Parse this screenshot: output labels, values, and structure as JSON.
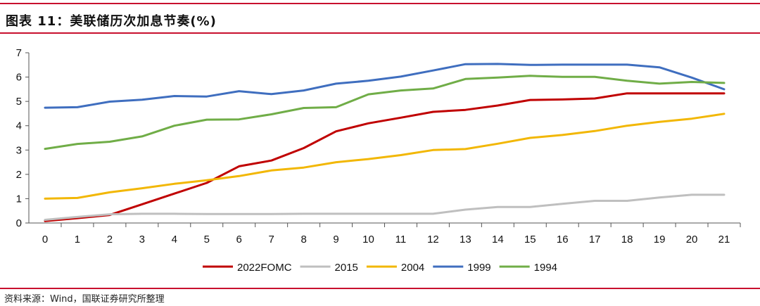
{
  "header": {
    "title": "图表 11：美联储历次加息节奏(%)",
    "source": "资料来源：Wind，国联证券研究所整理"
  },
  "chart_data": {
    "type": "line",
    "title": "图表 11：美联储历次加息节奏(%)",
    "xlabel": "",
    "ylabel": "",
    "x": [
      0,
      1,
      2,
      3,
      4,
      5,
      6,
      7,
      8,
      9,
      10,
      11,
      12,
      13,
      14,
      15,
      16,
      17,
      18,
      19,
      20,
      21
    ],
    "xlim": [
      0,
      21
    ],
    "ylim": [
      0,
      7
    ],
    "yticks": [
      0,
      1,
      2,
      3,
      4,
      5,
      6,
      7
    ],
    "legend_position": "bottom",
    "series": [
      {
        "name": "2022FOMC",
        "color": "#c00000",
        "values": [
          0.08,
          0.2,
          0.33,
          0.77,
          1.21,
          1.65,
          2.33,
          2.57,
          3.08,
          3.77,
          4.1,
          4.33,
          4.57,
          4.65,
          4.83,
          5.06,
          5.08,
          5.12,
          5.33,
          5.33,
          5.33,
          5.33
        ]
      },
      {
        "name": "2015",
        "color": "#bfbfbf",
        "values": [
          0.13,
          0.25,
          0.36,
          0.38,
          0.38,
          0.37,
          0.37,
          0.37,
          0.38,
          0.38,
          0.38,
          0.38,
          0.38,
          0.55,
          0.66,
          0.66,
          0.79,
          0.91,
          0.91,
          1.05,
          1.16,
          1.16
        ]
      },
      {
        "name": "2004",
        "color": "#f2b705",
        "values": [
          1.0,
          1.03,
          1.26,
          1.43,
          1.61,
          1.76,
          1.93,
          2.16,
          2.28,
          2.5,
          2.63,
          2.79,
          3.0,
          3.04,
          3.26,
          3.5,
          3.62,
          3.78,
          4.0,
          4.16,
          4.29,
          4.49
        ]
      },
      {
        "name": "1999",
        "color": "#3f6ebf",
        "values": [
          4.74,
          4.76,
          4.99,
          5.07,
          5.22,
          5.2,
          5.42,
          5.3,
          5.45,
          5.73,
          5.85,
          6.02,
          6.27,
          6.53,
          6.54,
          6.5,
          6.51,
          6.51,
          6.51,
          6.4,
          5.98,
          5.5
        ]
      },
      {
        "name": "1994",
        "color": "#70ad47",
        "values": [
          3.05,
          3.25,
          3.34,
          3.56,
          4.0,
          4.25,
          4.26,
          4.47,
          4.73,
          4.76,
          5.29,
          5.45,
          5.53,
          5.92,
          5.98,
          6.05,
          6.01,
          6.01,
          5.85,
          5.73,
          5.8,
          5.76
        ]
      }
    ]
  }
}
